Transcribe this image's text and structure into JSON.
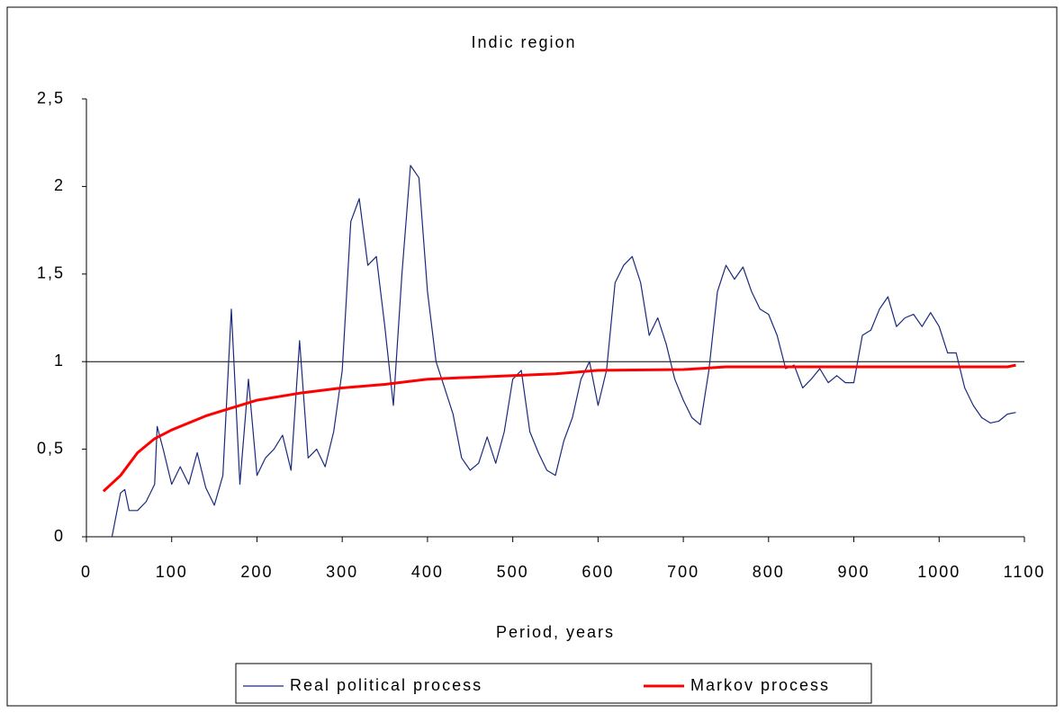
{
  "chart_data": {
    "type": "line",
    "title": "Indic region",
    "x_label": "Period, years",
    "xlim": [
      0,
      1100
    ],
    "xticks": [
      0,
      100,
      200,
      300,
      400,
      500,
      600,
      700,
      800,
      900,
      1000,
      1100
    ],
    "ylim": [
      0,
      2.5
    ],
    "yticks": [
      0,
      {
        "value": 0.5,
        "label": "0,5"
      },
      1,
      {
        "value": 1.5,
        "label": "1,5"
      },
      2,
      {
        "value": 2.5,
        "label": "2,5"
      }
    ],
    "hline": 1,
    "legend": "bottom",
    "series": [
      {
        "name": "Real political process",
        "color": "#1c2a7c",
        "x": [
          30,
          40,
          45,
          50,
          60,
          70,
          80,
          83,
          90,
          100,
          110,
          120,
          130,
          140,
          150,
          160,
          170,
          180,
          190,
          200,
          210,
          220,
          230,
          240,
          250,
          260,
          270,
          280,
          290,
          300,
          310,
          320,
          330,
          340,
          350,
          360,
          370,
          380,
          390,
          400,
          410,
          420,
          430,
          440,
          450,
          460,
          470,
          480,
          490,
          500,
          510,
          520,
          530,
          540,
          550,
          560,
          570,
          580,
          590,
          600,
          610,
          620,
          630,
          640,
          650,
          660,
          670,
          680,
          690,
          700,
          710,
          720,
          730,
          740,
          750,
          760,
          770,
          780,
          790,
          800,
          810,
          820,
          830,
          840,
          850,
          860,
          870,
          880,
          890,
          900,
          910,
          920,
          930,
          940,
          950,
          960,
          970,
          980,
          990,
          1000,
          1010,
          1020,
          1030,
          1040,
          1050,
          1060,
          1070,
          1080,
          1090
        ],
        "values": [
          0,
          0.25,
          0.27,
          0.15,
          0.15,
          0.2,
          0.3,
          0.63,
          0.5,
          0.3,
          0.4,
          0.3,
          0.48,
          0.28,
          0.18,
          0.35,
          1.3,
          0.3,
          0.9,
          0.35,
          0.45,
          0.5,
          0.58,
          0.38,
          1.12,
          0.45,
          0.5,
          0.4,
          0.6,
          0.95,
          1.8,
          1.93,
          1.55,
          1.6,
          1.2,
          0.75,
          1.5,
          2.12,
          2.05,
          1.4,
          1.0,
          0.85,
          0.7,
          0.45,
          0.38,
          0.42,
          0.57,
          0.42,
          0.6,
          0.9,
          0.95,
          0.6,
          0.48,
          0.38,
          0.35,
          0.55,
          0.68,
          0.9,
          1.0,
          0.75,
          0.95,
          1.45,
          1.55,
          1.6,
          1.45,
          1.15,
          1.25,
          1.1,
          0.9,
          0.78,
          0.68,
          0.64,
          0.95,
          1.4,
          1.55,
          1.47,
          1.54,
          1.4,
          1.3,
          1.27,
          1.15,
          0.96,
          0.98,
          0.85,
          0.9,
          0.96,
          0.88,
          0.92,
          0.88,
          0.88,
          1.15,
          1.18,
          1.3,
          1.37,
          1.2,
          1.25,
          1.27,
          1.2,
          1.28,
          1.2,
          1.05,
          1.05,
          0.85,
          0.75,
          0.68,
          0.65,
          0.66,
          0.7,
          0.71
        ]
      },
      {
        "name": "Markov process",
        "color": "#ff0000",
        "x": [
          20,
          40,
          60,
          80,
          100,
          120,
          140,
          160,
          180,
          200,
          250,
          300,
          350,
          400,
          450,
          500,
          550,
          600,
          700,
          750,
          800,
          900,
          1000,
          1080,
          1090
        ],
        "values": [
          0.26,
          0.35,
          0.48,
          0.56,
          0.61,
          0.65,
          0.69,
          0.72,
          0.75,
          0.78,
          0.82,
          0.85,
          0.87,
          0.9,
          0.91,
          0.92,
          0.93,
          0.95,
          0.955,
          0.97,
          0.97,
          0.97,
          0.97,
          0.97,
          0.98
        ]
      }
    ]
  }
}
